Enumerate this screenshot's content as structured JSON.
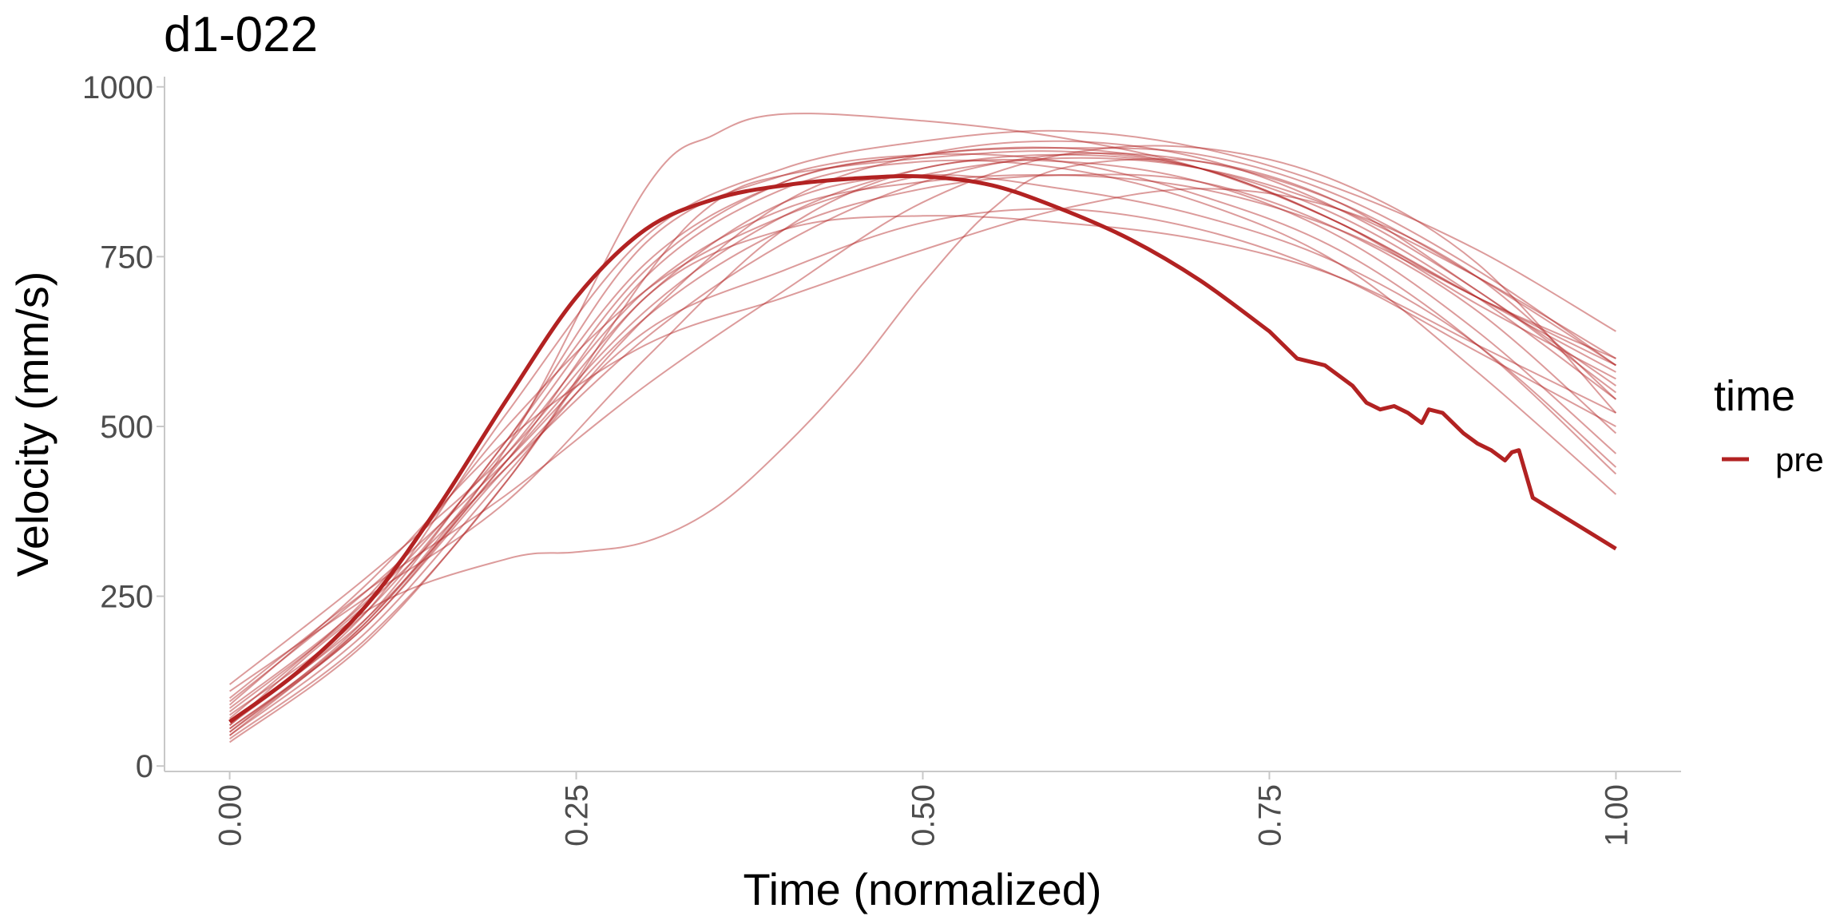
{
  "chart_data": {
    "type": "line",
    "title": "d1-022",
    "xlabel": "Time (normalized)",
    "ylabel": "Velocity (mm/s)",
    "xlim": [
      -0.047,
      1.047
    ],
    "ylim": [
      -8,
      1015
    ],
    "x_ticks": [
      0,
      0.25,
      0.5,
      0.75,
      1
    ],
    "x_tick_labels": [
      "0.00",
      "0.25",
      "0.50",
      "0.75",
      "1.00"
    ],
    "y_ticks": [
      0,
      250,
      500,
      750,
      1000
    ],
    "y_tick_labels": [
      "0",
      "250",
      "500",
      "750",
      "1000"
    ],
    "grid": false,
    "legend": {
      "title": "time",
      "position": "right",
      "entries": [
        {
          "label": "pre",
          "color": "#b22222"
        }
      ]
    },
    "colors": {
      "line": "#b22222",
      "axis": "#c8c8c8"
    },
    "mean_series": {
      "name": "pre",
      "x": [
        0,
        0.05,
        0.1,
        0.15,
        0.2,
        0.25,
        0.3,
        0.35,
        0.4,
        0.45,
        0.5,
        0.55,
        0.6,
        0.65,
        0.7,
        0.75,
        0.77,
        0.79,
        0.81,
        0.82,
        0.83,
        0.84,
        0.85,
        0.86,
        0.865,
        0.875,
        0.88,
        0.89,
        0.9,
        0.91,
        0.92,
        0.925,
        0.93,
        0.94,
        0.96,
        0.98,
        1.0
      ],
      "values": [
        65,
        140,
        240,
        380,
        540,
        690,
        790,
        835,
        855,
        865,
        868,
        855,
        820,
        775,
        715,
        640,
        600,
        590,
        560,
        535,
        525,
        530,
        520,
        505,
        525,
        520,
        510,
        490,
        475,
        465,
        450,
        462,
        465,
        395,
        370,
        345,
        320
      ]
    },
    "series": [
      {
        "x": [
          0,
          0.1,
          0.2,
          0.3,
          0.35,
          0.4,
          0.5,
          0.6,
          0.7,
          0.8,
          0.9,
          1.0
        ],
        "values": [
          40,
          190,
          420,
          720,
          830,
          870,
          895,
          905,
          880,
          800,
          690,
          600
        ]
      },
      {
        "x": [
          0,
          0.1,
          0.2,
          0.3,
          0.4,
          0.5,
          0.6,
          0.7,
          0.8,
          0.9,
          1.0
        ],
        "values": [
          50,
          210,
          440,
          640,
          730,
          800,
          820,
          790,
          720,
          610,
          500
        ]
      },
      {
        "x": [
          0,
          0.1,
          0.2,
          0.3,
          0.35,
          0.4,
          0.5,
          0.6,
          0.7,
          0.8,
          0.9,
          1.0
        ],
        "values": [
          55,
          215,
          470,
          850,
          930,
          960,
          950,
          925,
          880,
          800,
          690,
          580
        ]
      },
      {
        "x": [
          0,
          0.1,
          0.2,
          0.3,
          0.4,
          0.5,
          0.6,
          0.7,
          0.8,
          0.9,
          1.0
        ],
        "values": [
          60,
          230,
          520,
          780,
          880,
          920,
          935,
          910,
          850,
          760,
          640
        ]
      },
      {
        "x": [
          0,
          0.1,
          0.2,
          0.3,
          0.4,
          0.5,
          0.6,
          0.7,
          0.8,
          0.9,
          1.0
        ],
        "values": [
          70,
          250,
          500,
          700,
          810,
          870,
          895,
          880,
          820,
          720,
          600
        ]
      },
      {
        "x": [
          0,
          0.1,
          0.2,
          0.3,
          0.4,
          0.5,
          0.6,
          0.7,
          0.8,
          0.9,
          1.0
        ],
        "values": [
          80,
          240,
          440,
          630,
          770,
          860,
          900,
          890,
          830,
          720,
          590
        ]
      },
      {
        "x": [
          0,
          0.1,
          0.2,
          0.3,
          0.4,
          0.5,
          0.6,
          0.7,
          0.8,
          0.9,
          1.0
        ],
        "values": [
          45,
          200,
          430,
          660,
          830,
          900,
          920,
          895,
          820,
          700,
          550
        ]
      },
      {
        "x": [
          0,
          0.1,
          0.2,
          0.3,
          0.4,
          0.5,
          0.6,
          0.7,
          0.8,
          0.9,
          1.0
        ],
        "values": [
          90,
          270,
          480,
          620,
          690,
          760,
          820,
          850,
          820,
          720,
          540
        ]
      },
      {
        "x": [
          0,
          0.1,
          0.2,
          0.3,
          0.4,
          0.5,
          0.6,
          0.7,
          0.8,
          0.9,
          1.0
        ],
        "values": [
          100,
          260,
          400,
          560,
          700,
          830,
          900,
          910,
          860,
          740,
          520
        ]
      },
      {
        "x": [
          0,
          0.1,
          0.2,
          0.3,
          0.4,
          0.5,
          0.6,
          0.7,
          0.8,
          0.9,
          1.0
        ],
        "values": [
          110,
          250,
          390,
          600,
          790,
          880,
          890,
          860,
          780,
          640,
          460
        ]
      },
      {
        "x": [
          0,
          0.1,
          0.2,
          0.3,
          0.4,
          0.5,
          0.6,
          0.7,
          0.8,
          0.9,
          1.0
        ],
        "values": [
          120,
          280,
          460,
          690,
          830,
          870,
          850,
          810,
          740,
          620,
          440
        ]
      },
      {
        "x": [
          0,
          0.1,
          0.2,
          0.3,
          0.4,
          0.5,
          0.6,
          0.7,
          0.8,
          0.9,
          1.0
        ],
        "values": [
          75,
          230,
          480,
          770,
          870,
          900,
          890,
          840,
          760,
          620,
          430
        ]
      },
      {
        "x": [
          0,
          0.1,
          0.2,
          0.3,
          0.4,
          0.5,
          0.6,
          0.7,
          0.8,
          0.9,
          1.0
        ],
        "values": [
          65,
          220,
          450,
          720,
          850,
          890,
          880,
          830,
          740,
          580,
          400
        ]
      },
      {
        "x": [
          0,
          0.1,
          0.2,
          0.3,
          0.4,
          0.5,
          0.6,
          0.7,
          0.8,
          0.9,
          1.0
        ],
        "values": [
          35,
          185,
          420,
          690,
          790,
          810,
          800,
          775,
          720,
          620,
          520
        ]
      },
      {
        "x": [
          0,
          0.1,
          0.2,
          0.3,
          0.4,
          0.5,
          0.6,
          0.7,
          0.8,
          0.9,
          1.0
        ],
        "values": [
          55,
          210,
          450,
          670,
          810,
          880,
          900,
          880,
          810,
          690,
          540
        ]
      },
      {
        "x": [
          0,
          0.1,
          0.2,
          0.25,
          0.3,
          0.35,
          0.4,
          0.45,
          0.5,
          0.55,
          0.6,
          0.7,
          0.8,
          0.9,
          1.0
        ],
        "values": [
          60,
          230,
          305,
          315,
          330,
          380,
          470,
          580,
          710,
          820,
          880,
          890,
          830,
          700,
          560
        ]
      },
      {
        "x": [
          0,
          0.1,
          0.2,
          0.3,
          0.4,
          0.5,
          0.6,
          0.7,
          0.8,
          0.9,
          1.0
        ],
        "values": [
          50,
          220,
          480,
          740,
          860,
          900,
          910,
          880,
          800,
          680,
          570
        ]
      },
      {
        "x": [
          0,
          0.1,
          0.2,
          0.3,
          0.4,
          0.5,
          0.6,
          0.7,
          0.8,
          0.9,
          1.0
        ],
        "values": [
          45,
          215,
          460,
          700,
          820,
          860,
          870,
          850,
          790,
          690,
          590
        ]
      },
      {
        "x": [
          0,
          0.1,
          0.2,
          0.3,
          0.4,
          0.5,
          0.6,
          0.7,
          0.8,
          0.9,
          1.0
        ],
        "values": [
          85,
          245,
          470,
          730,
          860,
          900,
          910,
          900,
          840,
          730,
          590
        ]
      },
      {
        "x": [
          0,
          0.1,
          0.2,
          0.3,
          0.4,
          0.5,
          0.6,
          0.7,
          0.8,
          0.9,
          1.0
        ],
        "values": [
          95,
          260,
          450,
          660,
          790,
          850,
          870,
          860,
          790,
          670,
          490
        ]
      }
    ]
  }
}
